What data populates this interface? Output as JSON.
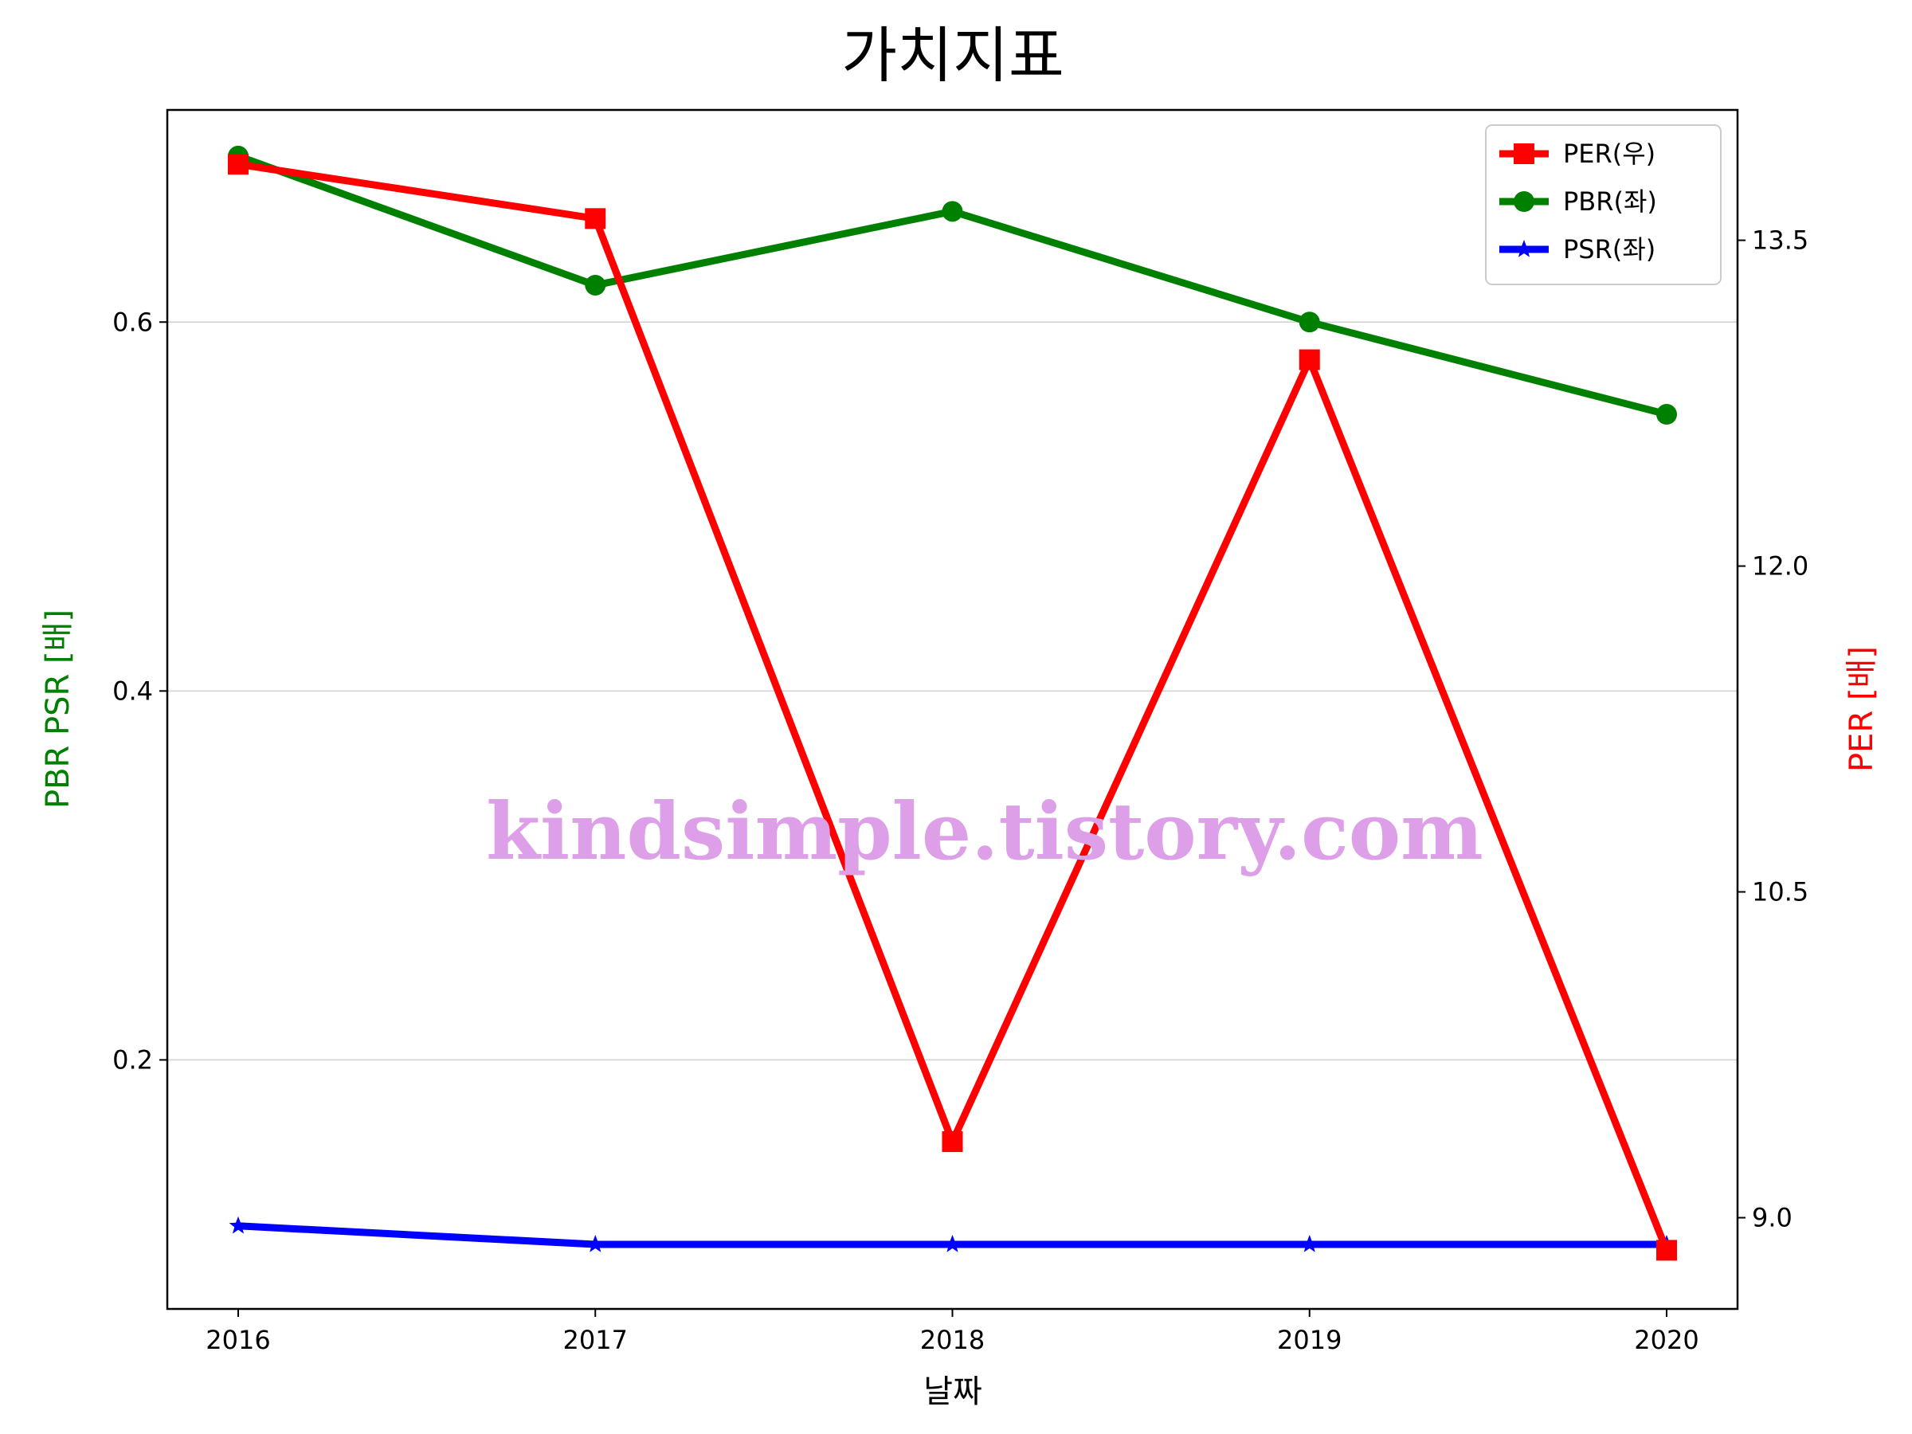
{
  "chart_data": {
    "type": "line",
    "title": "가치지표",
    "xlabel": "날짜",
    "ylabel_left": "PBR PSR [배]",
    "ylabel_right": "PER [배]",
    "watermark": "kindsimple.tistory.com",
    "categories": [
      "2016",
      "2017",
      "2018",
      "2019",
      "2020"
    ],
    "ylim_left": [
      0.065,
      0.715
    ],
    "ylim_right": [
      8.58,
      14.1
    ],
    "yticks_left": [
      0.2,
      0.4,
      0.6
    ],
    "yticks_left_labels": [
      "0.2",
      "0.4",
      "0.6"
    ],
    "yticks_right": [
      9.0,
      10.5,
      12.0,
      13.5
    ],
    "yticks_right_labels": [
      "9.0",
      "10.5",
      "12.0",
      "13.5"
    ],
    "grid": "horizontal (left axis)",
    "legend_position": "top-right",
    "series": [
      {
        "name": "PER(우)",
        "axis": "right",
        "marker": "square",
        "color": "#ff0000",
        "values": [
          13.85,
          13.6,
          9.35,
          12.95,
          8.85
        ]
      },
      {
        "name": "PBR(좌)",
        "axis": "left",
        "marker": "circle",
        "color": "#008000",
        "values": [
          0.69,
          0.62,
          0.66,
          0.6,
          0.55
        ]
      },
      {
        "name": "PSR(좌)",
        "axis": "left",
        "marker": "star",
        "color": "#0000ff",
        "values": [
          0.11,
          0.1,
          0.1,
          0.1,
          0.1
        ]
      }
    ]
  }
}
